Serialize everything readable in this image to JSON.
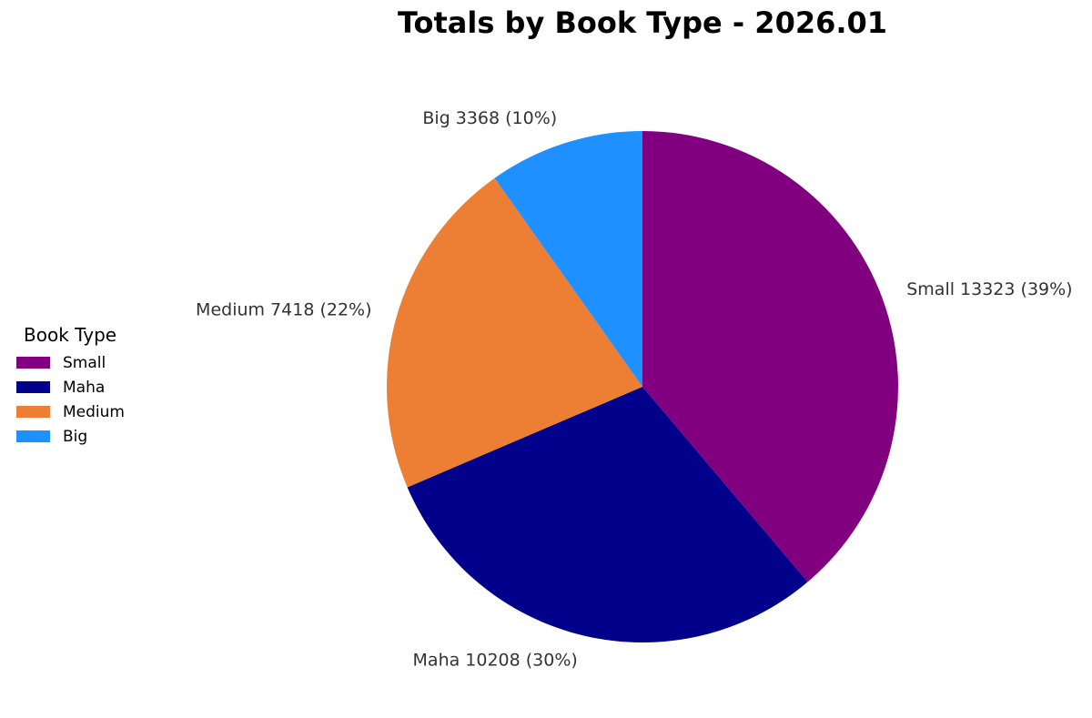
{
  "chart_data": {
    "type": "pie",
    "title": "Totals by Book Type - 2026.01",
    "legend_title": "Book Type",
    "legend_placement": "left",
    "categories": [
      "Small",
      "Maha",
      "Medium",
      "Big"
    ],
    "values": [
      13323,
      10208,
      7418,
      3368
    ],
    "percent_labels": [
      "39%",
      "30%",
      "22%",
      "10%"
    ],
    "slice_labels": [
      "Small 13323 (39%)",
      "Maha 10208 (30%)",
      "Medium 7418 (22%)",
      "Big 3368 (10%)"
    ],
    "colors": [
      "#800080",
      "#00008B",
      "#ED7F34",
      "#1E90FF"
    ]
  }
}
